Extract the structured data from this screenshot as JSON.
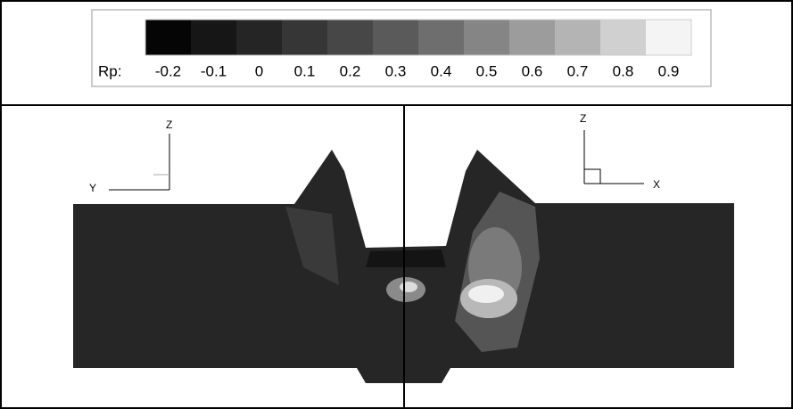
{
  "legend": {
    "title": "Rp:",
    "levels": [
      {
        "label": "-0.2",
        "color": "#050505"
      },
      {
        "label": "-0.1",
        "color": "#161616"
      },
      {
        "label": "0",
        "color": "#252525"
      },
      {
        "label": "0.1",
        "color": "#363636"
      },
      {
        "label": "0.2",
        "color": "#474747"
      },
      {
        "label": "0.3",
        "color": "#5a5a5a"
      },
      {
        "label": "0.4",
        "color": "#6e6e6e"
      },
      {
        "label": "0.5",
        "color": "#858585"
      },
      {
        "label": "0.6",
        "color": "#9c9c9c"
      },
      {
        "label": "0.7",
        "color": "#b4b4b4"
      },
      {
        "label": "0.8",
        "color": "#d0d0d0"
      },
      {
        "label": "0.9",
        "color": "#f4f4f4"
      }
    ]
  },
  "views": [
    {
      "axes": {
        "vertical": "Z",
        "horizontal": "Y"
      }
    },
    {
      "axes": {
        "vertical": "Z",
        "horizontal": "X"
      }
    }
  ]
}
